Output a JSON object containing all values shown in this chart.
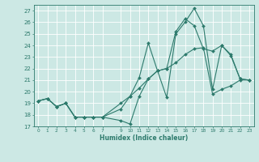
{
  "xlabel": "Humidex (Indice chaleur)",
  "bg_color": "#cce8e4",
  "line_color": "#2d7a6c",
  "grid_color": "#ffffff",
  "xlim": [
    -0.5,
    23.5
  ],
  "ylim": [
    17,
    27.5
  ],
  "yticks": [
    17,
    18,
    19,
    20,
    21,
    22,
    23,
    24,
    25,
    26,
    27
  ],
  "xtick_vals": [
    0,
    1,
    2,
    3,
    4,
    5,
    6,
    7,
    9,
    10,
    11,
    12,
    13,
    14,
    15,
    16,
    17,
    18,
    19,
    20,
    21,
    22,
    23
  ],
  "xtick_labels": [
    "0",
    "1",
    "2",
    "3",
    "4",
    "5",
    "6",
    "7",
    "9",
    "10",
    "11",
    "12",
    "13",
    "14",
    "15",
    "16",
    "17",
    "18",
    "19",
    "20",
    "21",
    "22",
    "23"
  ],
  "line1_x": [
    0,
    1,
    2,
    3,
    4,
    5,
    6,
    7,
    9,
    10,
    11,
    12,
    13,
    14,
    15,
    16,
    17,
    18,
    19,
    20,
    21,
    22,
    23
  ],
  "line1_y": [
    19.2,
    19.4,
    18.7,
    19.0,
    17.8,
    17.8,
    17.8,
    17.8,
    17.5,
    17.2,
    19.6,
    21.1,
    21.8,
    19.5,
    25.0,
    26.0,
    27.2,
    25.7,
    20.2,
    24.0,
    23.2,
    21.1,
    21.0
  ],
  "line2_x": [
    0,
    1,
    2,
    3,
    4,
    5,
    6,
    7,
    9,
    10,
    11,
    12,
    13,
    14,
    15,
    16,
    17,
    18,
    19,
    20,
    21,
    22,
    23
  ],
  "line2_y": [
    19.2,
    19.4,
    18.7,
    19.0,
    17.8,
    17.8,
    17.8,
    17.8,
    18.5,
    19.6,
    21.2,
    24.2,
    21.8,
    22.0,
    25.2,
    26.3,
    25.7,
    23.7,
    23.5,
    24.0,
    23.1,
    21.1,
    21.0
  ],
  "line3_x": [
    0,
    1,
    2,
    3,
    4,
    5,
    6,
    7,
    9,
    10,
    11,
    12,
    13,
    14,
    15,
    16,
    17,
    18,
    19,
    20,
    21,
    22,
    23
  ],
  "line3_y": [
    19.2,
    19.4,
    18.7,
    19.0,
    17.8,
    17.8,
    17.8,
    17.8,
    19.0,
    19.6,
    20.3,
    21.1,
    21.8,
    22.0,
    22.5,
    23.2,
    23.7,
    23.8,
    19.8,
    20.2,
    20.5,
    21.0,
    21.0
  ]
}
